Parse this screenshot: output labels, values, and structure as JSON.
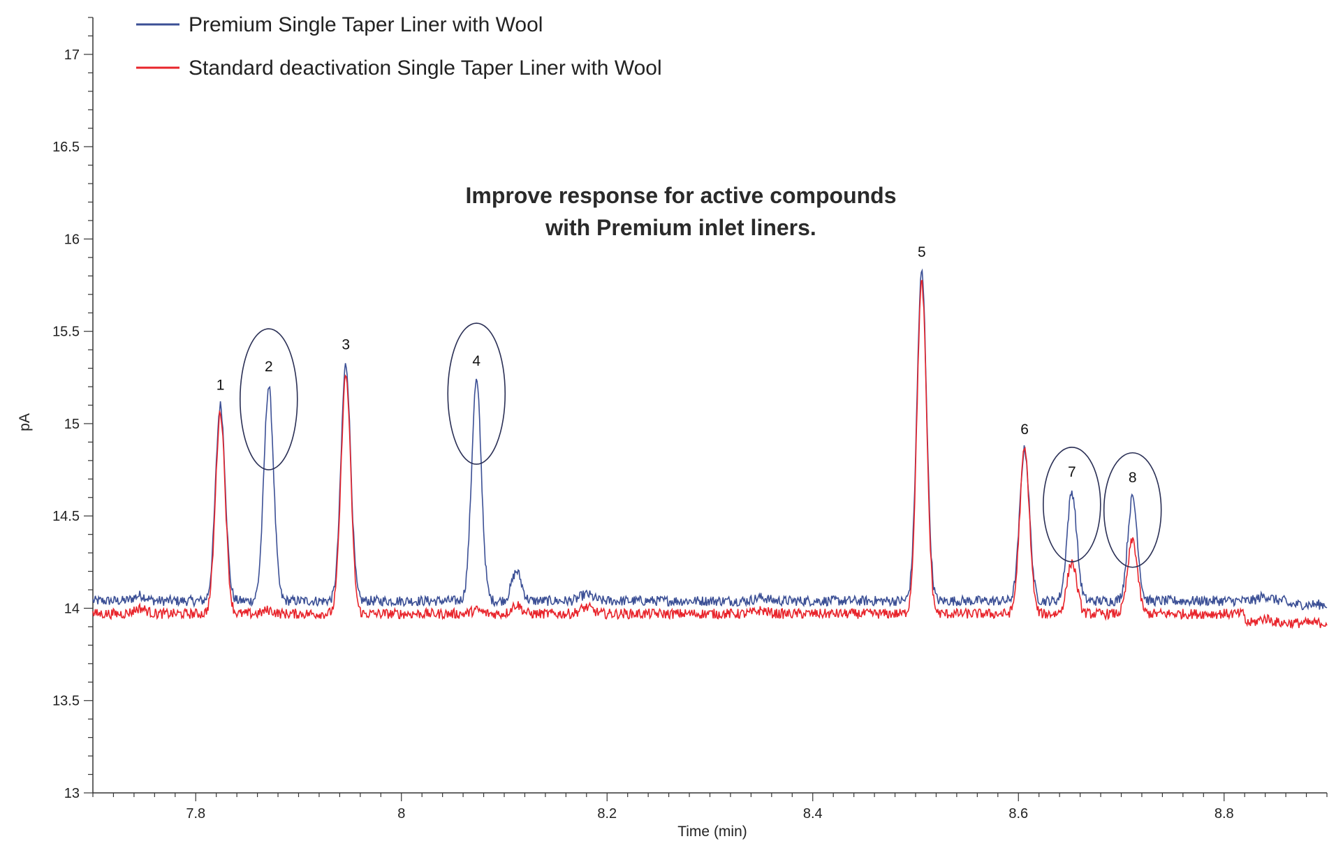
{
  "chart_data": {
    "type": "line",
    "xlabel": "Time (min)",
    "ylabel": "pA",
    "xlim": [
      7.7,
      8.9
    ],
    "ylim": [
      13,
      17.2
    ],
    "x_ticks": [
      "7.8",
      "8",
      "8.2",
      "8.4",
      "8.6",
      "8.8"
    ],
    "y_ticks": [
      "13",
      "13.5",
      "14",
      "14.5",
      "15",
      "15.5",
      "16",
      "16.5",
      "17"
    ],
    "grid": false,
    "legend_position": "top-left",
    "annotation_lines": [
      "Improve response for active compounds",
      "with Premium inlet liners."
    ],
    "series": [
      {
        "name": "Premium Single Taper Liner with Wool",
        "color": "#3b4f95",
        "baseline": 14.04,
        "peaks": [
          {
            "label": "1",
            "x": 7.824,
            "y": 15.1
          },
          {
            "label": "2",
            "x": 7.871,
            "y": 15.2
          },
          {
            "label": "3",
            "x": 7.946,
            "y": 15.32
          },
          {
            "label": "4",
            "x": 8.073,
            "y": 15.23
          },
          {
            "label": "",
            "x": 8.112,
            "y": 14.2
          },
          {
            "label": "5",
            "x": 8.506,
            "y": 15.82
          },
          {
            "label": "6",
            "x": 8.606,
            "y": 14.86
          },
          {
            "label": "7",
            "x": 8.652,
            "y": 14.63
          },
          {
            "label": "8",
            "x": 8.711,
            "y": 14.6
          }
        ]
      },
      {
        "name": "Standard deactivation Single Taper Liner with Wool",
        "color": "#e8242b",
        "baseline": 13.97,
        "peaks": [
          {
            "label": "1",
            "x": 7.824,
            "y": 15.06
          },
          {
            "label": "2",
            "x": 7.871,
            "y": 13.99
          },
          {
            "label": "3",
            "x": 7.946,
            "y": 15.26
          },
          {
            "label": "4",
            "x": 8.073,
            "y": 13.99
          },
          {
            "label": "",
            "x": 8.112,
            "y": 14.02
          },
          {
            "label": "5",
            "x": 8.506,
            "y": 15.76
          },
          {
            "label": "6",
            "x": 8.606,
            "y": 14.86
          },
          {
            "label": "7",
            "x": 8.652,
            "y": 14.25
          },
          {
            "label": "8",
            "x": 8.711,
            "y": 14.37
          }
        ]
      }
    ],
    "peak_labels": [
      "1",
      "2",
      "3",
      "4",
      "5",
      "6",
      "7",
      "8"
    ],
    "highlighted_peaks": [
      "2",
      "4",
      "7",
      "8"
    ]
  }
}
